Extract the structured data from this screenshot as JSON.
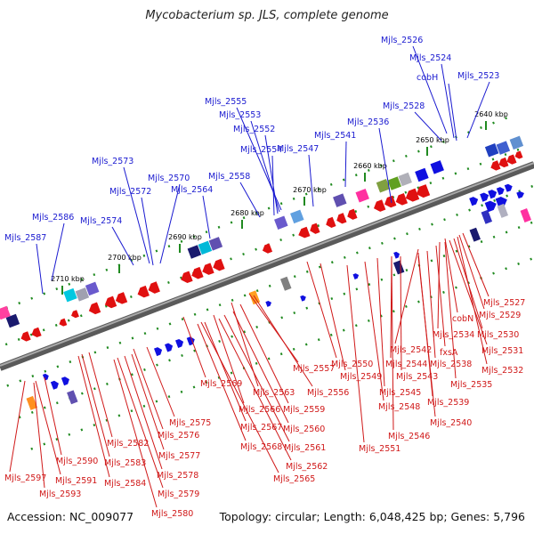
{
  "title": "Mycobacterium sp. JLS, complete genome",
  "footer": {
    "accession": "Accession: NC_009077",
    "summary": "Topology: circular; Length: 6,048,425 bp; Genes: 5,796"
  },
  "colors": {
    "forward": "#1010e0",
    "reverse": "#e01010",
    "label_forward": "#1a1ad0",
    "label_reverse": "#d01818",
    "backbone": "#808080",
    "tick": "#208a20"
  },
  "kbp_labels": [
    "2640 kbp",
    "2650 kbp",
    "2660 kbp",
    "2670 kbp",
    "2680 kbp",
    "2690 kbp",
    "2700 kbp",
    "2710 kbp"
  ],
  "forward_genes": [
    "Mjls_2526",
    "Mjls_2524",
    "cobH",
    "Mjls_2523",
    "Mjls_2528",
    "Mjls_2536",
    "Mjls_2541",
    "Mjls_2547",
    "Mjls_2555",
    "Mjls_2553",
    "Mjls_2552",
    "Mjls_2554",
    "Mjls_2558",
    "Mjls_2564",
    "Mjls_2573",
    "Mjls_2570",
    "Mjls_2572",
    "Mjls_2574",
    "Mjls_2586",
    "Mjls_2587"
  ],
  "reverse_genes": [
    "Mjls_2527",
    "Mjls_2529",
    "cobN",
    "Mjls_2530",
    "Mjls_2534",
    "fxsA",
    "Mjls_2531",
    "Mjls_2542",
    "Mjls_2538",
    "Mjls_2532",
    "Mjls_2550",
    "Mjls_2544",
    "Mjls_2543",
    "Mjls_2535",
    "Mjls_2549",
    "Mjls_2545",
    "Mjls_2539",
    "Mjls_2548",
    "Mjls_2540",
    "Mjls_2546",
    "Mjls_2551",
    "Mjls_2557",
    "Mjls_2556",
    "Mjls_2569",
    "Mjls_2563",
    "Mjls_2559",
    "Mjls_2566",
    "Mjls_2560",
    "Mjls_2567",
    "Mjls_2561",
    "Mjls_2568",
    "Mjls_2562",
    "Mjls_2565",
    "Mjls_2575",
    "Mjls_2576",
    "Mjls_2582",
    "Mjls_2577",
    "Mjls_2583",
    "Mjls_2578",
    "Mjls_2584",
    "Mjls_2579",
    "Mjls_2580",
    "Mjls_2590",
    "Mjls_2597",
    "Mjls_2591",
    "Mjls_2593"
  ]
}
